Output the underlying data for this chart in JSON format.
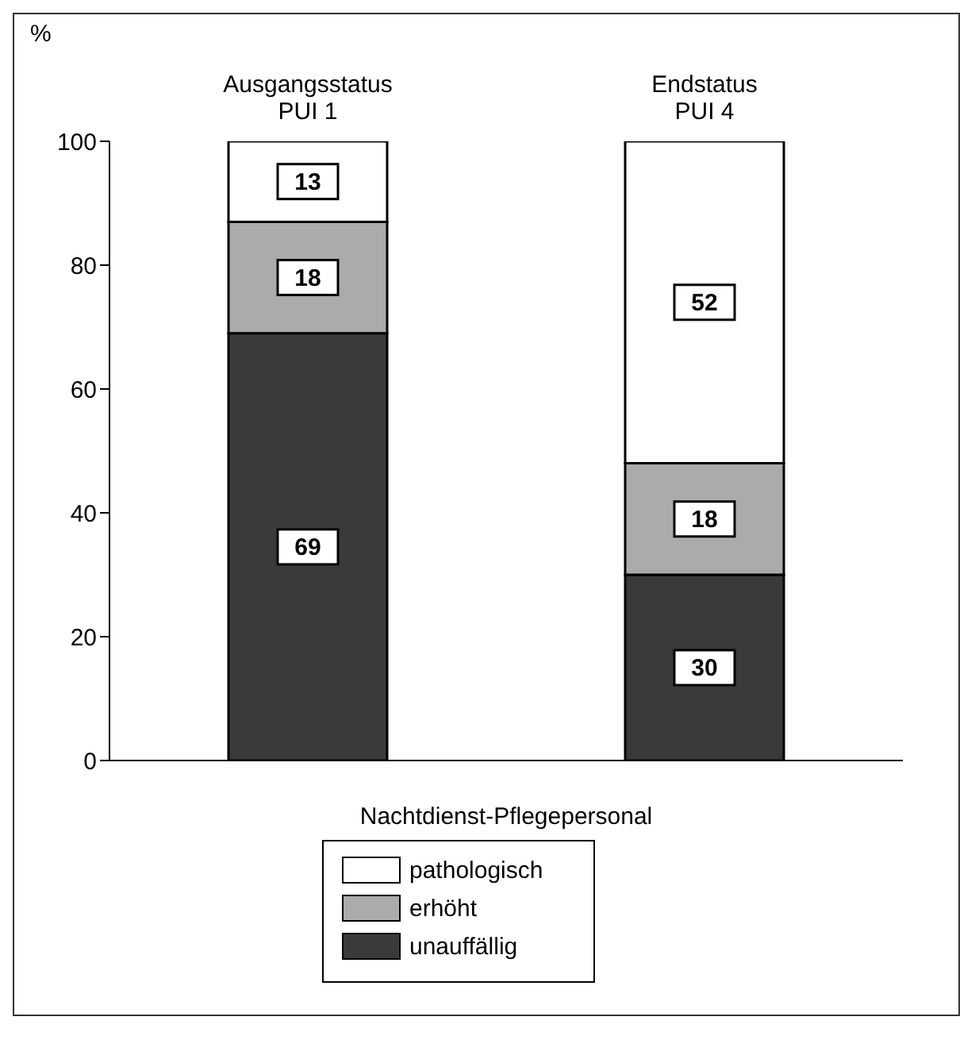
{
  "chart_data": {
    "type": "bar",
    "stacked": true,
    "categories": [
      "Ausgangsstatus\nPUI 1",
      "Endstatus\nPUI 4"
    ],
    "xlabel": "Nachtdienst-Pflegepersonal",
    "ylabel": "%",
    "ylim": [
      0,
      100
    ],
    "yticks": [
      0,
      20,
      40,
      60,
      80,
      100
    ],
    "grid": false,
    "legend": "bottom",
    "data_labels": true,
    "series": [
      {
        "name": "unauffällig",
        "color": "#3a3a3a",
        "values": [
          69,
          30
        ]
      },
      {
        "name": "erhöht",
        "color": "#ababab",
        "values": [
          18,
          18
        ]
      },
      {
        "name": "pathologisch",
        "color": "#ffffff",
        "values": [
          13,
          52
        ]
      }
    ]
  }
}
